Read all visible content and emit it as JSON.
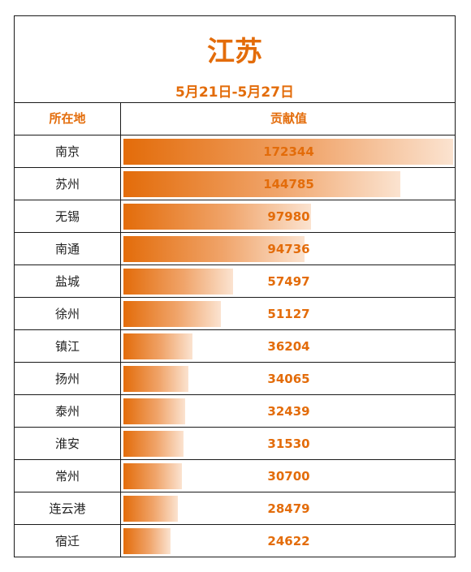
{
  "header": {
    "title": "江苏",
    "subtitle": "5月21日-5月27日"
  },
  "table": {
    "col_city": "所在地",
    "col_value": "贡献值"
  },
  "chart_data": {
    "type": "bar",
    "orientation": "horizontal",
    "title": "江苏",
    "subtitle": "5月21日-5月27日",
    "categories": [
      "南京",
      "苏州",
      "无锡",
      "南通",
      "盐城",
      "徐州",
      "镇江",
      "扬州",
      "泰州",
      "淮安",
      "常州",
      "连云港",
      "宿迁"
    ],
    "values": [
      172344,
      144785,
      97980,
      94736,
      57497,
      51127,
      36204,
      34065,
      32439,
      31530,
      30700,
      28479,
      24622
    ],
    "xlim": [
      0,
      172344
    ],
    "grid": false,
    "colors": {
      "bar_start": "#e36c0a",
      "bar_end": "#fbe3d0",
      "text_accent": "#e36c0a"
    }
  }
}
